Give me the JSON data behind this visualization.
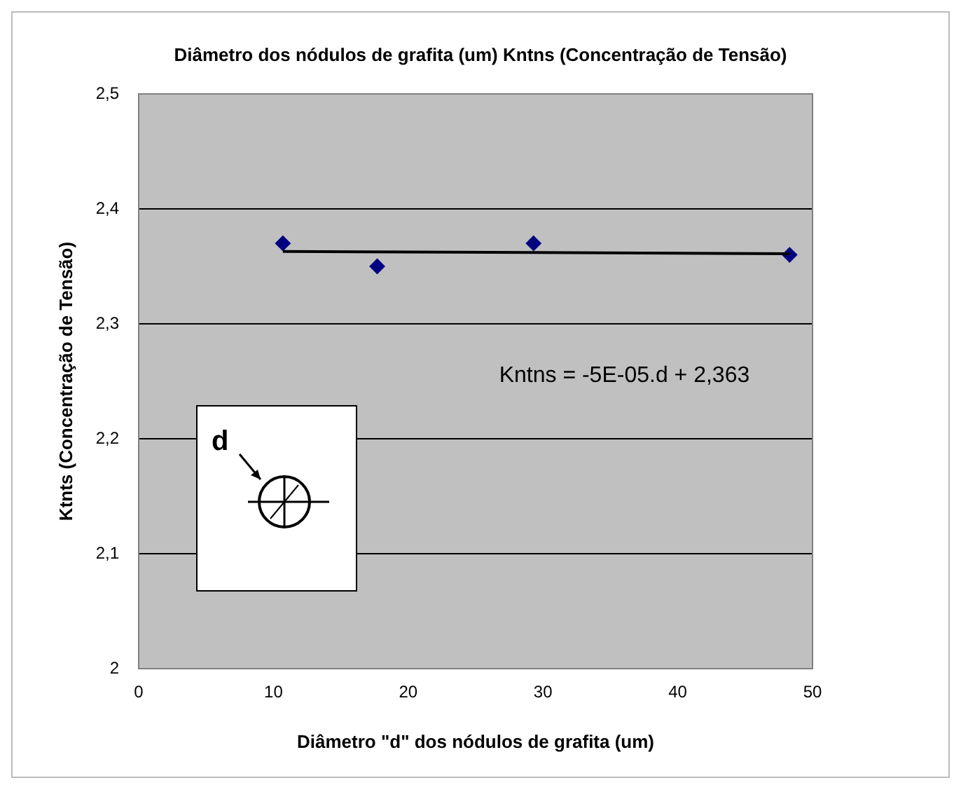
{
  "chart_data": {
    "type": "scatter",
    "title": "Diâmetro dos nódulos de grafita (um) Kntns (Concentração de Tensão)",
    "xlabel": "Diâmetro \"d\" dos nódulos de grafita (um)",
    "ylabel": "Ktnts (Concentração de Tensão)",
    "series": [
      {
        "type": "scatter",
        "color": "#000080",
        "x": [
          10.7,
          17.7,
          29.3,
          48.3
        ],
        "values": [
          2.37,
          2.35,
          2.37,
          2.36
        ]
      },
      {
        "type": "line",
        "color": "#000000",
        "marker": "none",
        "x": [
          10.7,
          48.3
        ],
        "values": [
          2.363,
          2.361
        ]
      }
    ],
    "xlim": [
      0,
      50
    ],
    "xticks": [
      0,
      10,
      20,
      30,
      40,
      50
    ],
    "ylim": [
      2,
      2.5
    ],
    "yticks": [
      {
        "value": 2,
        "label": "2"
      },
      {
        "value": 2.1,
        "label": "2,1"
      },
      {
        "value": 2.2,
        "label": "2,2"
      },
      {
        "value": 2.3,
        "label": "2,3"
      },
      {
        "value": 2.4,
        "label": "2,4"
      },
      {
        "value": 2.5,
        "label": "2,5"
      }
    ],
    "grid": "y",
    "legend": false,
    "marker": "diamond",
    "annotations": [
      "Kntns = -5E-05.d + 2,363",
      "d"
    ]
  }
}
